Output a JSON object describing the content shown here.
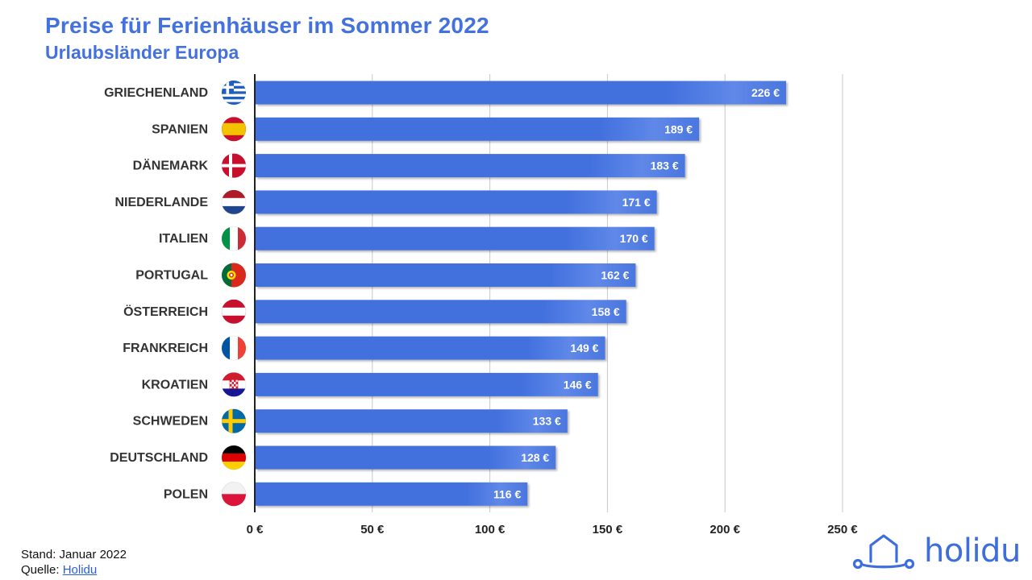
{
  "header": {
    "title": "Preise für Ferienhäuser im Sommer 2022",
    "subtitle": "Urlaubsländer Europa"
  },
  "footer": {
    "stand_label": "Stand: Januar 2022",
    "quelle_prefix": "Quelle: ",
    "quelle_link": "Holidu"
  },
  "brand": {
    "name": "holidu",
    "icon": "house-logo-icon",
    "color": "#3d6edc"
  },
  "colors": {
    "bar": "#4371de",
    "bar_highlight": "#6a90ea",
    "axis": "#222222",
    "grid": "#c8c8c8",
    "accent": "#4371de"
  },
  "chart_data": {
    "type": "bar",
    "orientation": "horizontal",
    "title": "Preise für Ferienhäuser im Sommer 2022",
    "subtitle": "Urlaubsländer Europa",
    "categories": [
      "GRIECHENLAND",
      "SPANIEN",
      "DÄNEMARK",
      "NIEDERLANDE",
      "ITALIEN",
      "PORTUGAL",
      "ÖSTERREICH",
      "FRANKREICH",
      "KROATIEN",
      "SCHWEDEN",
      "DEUTSCHLAND",
      "POLEN"
    ],
    "flags": [
      "greece-flag-icon",
      "spain-flag-icon",
      "denmark-flag-icon",
      "netherlands-flag-icon",
      "italy-flag-icon",
      "portugal-flag-icon",
      "austria-flag-icon",
      "france-flag-icon",
      "croatia-flag-icon",
      "sweden-flag-icon",
      "germany-flag-icon",
      "poland-flag-icon"
    ],
    "values": [
      226,
      189,
      183,
      171,
      170,
      162,
      158,
      149,
      146,
      133,
      128,
      116
    ],
    "value_labels": [
      "226 €",
      "189 €",
      "183 €",
      "171 €",
      "170 €",
      "162 €",
      "158 €",
      "149 €",
      "146 €",
      "133 €",
      "128 €",
      "116 €"
    ],
    "xticks": [
      0,
      50,
      100,
      150,
      200,
      250
    ],
    "xtick_labels": [
      "0 €",
      "50 €",
      "100 €",
      "150 €",
      "200 €",
      "250 €"
    ],
    "xlim": [
      0,
      250
    ],
    "grid": true
  }
}
